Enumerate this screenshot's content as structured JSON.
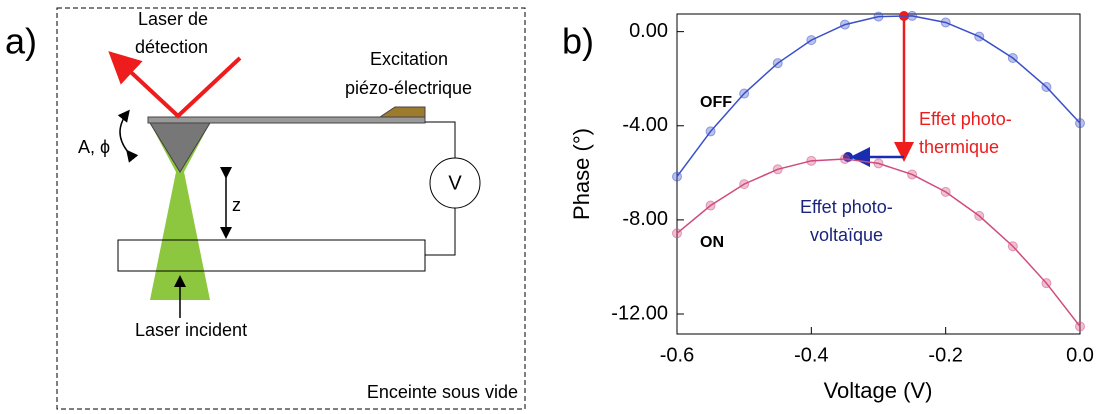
{
  "diagram": {
    "panel_label": "a)",
    "detection_laser": [
      "Laser de",
      "détection"
    ],
    "excitation": [
      "Excitation",
      "piézo-électrique"
    ],
    "amplitude_phase": "A, ϕ",
    "z_label": "z",
    "voltmeter": "V",
    "incident_laser": "Laser incident",
    "chamber": "Enceinte sous vide"
  },
  "chart_data": {
    "type": "scatter",
    "panel_label": "b)",
    "xlabel": "Voltage (V)",
    "ylabel": "Phase (°)",
    "x": [
      -0.6,
      -0.55,
      -0.5,
      -0.45,
      -0.4,
      -0.35,
      -0.3,
      -0.25,
      -0.2,
      -0.15,
      -0.1,
      -0.05,
      0.0
    ],
    "series": [
      {
        "name": "OFF",
        "color": "#3a4fc9",
        "values": [
          -6.16,
          -4.24,
          -2.63,
          -1.34,
          -0.36,
          0.3,
          0.64,
          0.67,
          0.39,
          -0.21,
          -1.12,
          -2.35,
          -3.89
        ]
      },
      {
        "name": "ON",
        "color": "#d04a7e",
        "values": [
          -8.57,
          -7.39,
          -6.48,
          -5.85,
          -5.49,
          -5.41,
          -5.6,
          -6.07,
          -6.81,
          -7.83,
          -9.12,
          -10.69,
          -12.53
        ]
      }
    ],
    "annotations": [
      {
        "text": [
          "Effet photo-",
          "thermique"
        ],
        "color": "#ee1c1c"
      },
      {
        "text": [
          "Effet photo-",
          "voltaïque"
        ],
        "color": "#1a237e"
      }
    ],
    "xlim": [
      -0.6,
      0.0
    ],
    "ylim": [
      -12.85,
      0.75
    ],
    "xticks": [
      -0.6,
      -0.4,
      -0.2,
      {
        "value": 0,
        "label": "0.0"
      }
    ],
    "yticks": [
      {
        "value": 0,
        "label": "0.00"
      },
      {
        "value": -4,
        "label": "-4.00"
      },
      {
        "value": -8,
        "label": "-8.00"
      },
      {
        "value": -12,
        "label": "-12.00"
      }
    ]
  }
}
